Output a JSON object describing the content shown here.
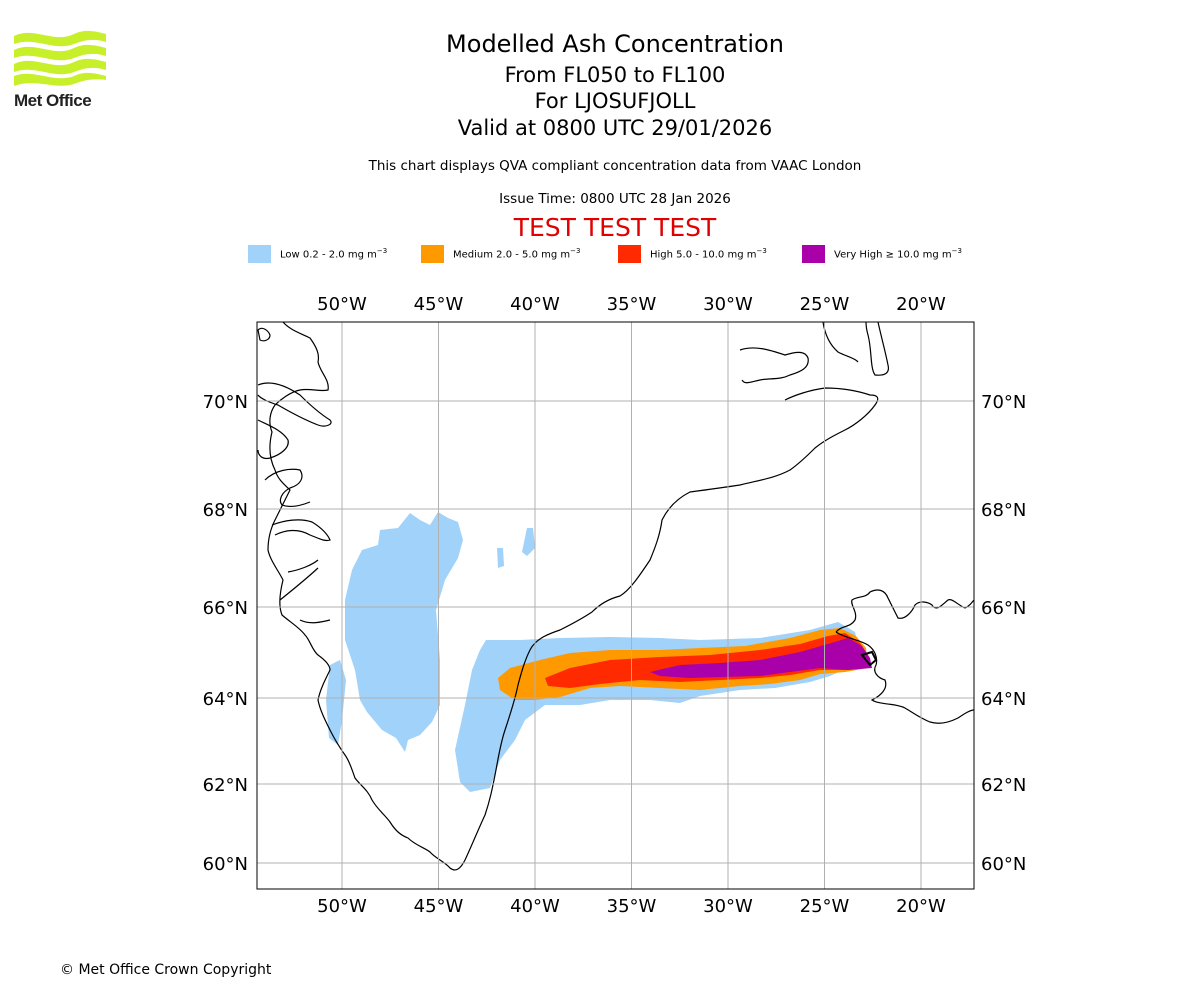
{
  "logo": {
    "brand": "Met Office",
    "icon": "met-office-wave-logo",
    "color": "#c8f02a"
  },
  "titles": {
    "main": "Modelled Ash Concentration",
    "levels": "From FL050 to FL100",
    "volcano": "For LJOSUFJOLL",
    "valid": "Valid at 0800 UTC 29/01/2026"
  },
  "subtitle": "This chart displays QVA compliant concentration data from VAAC London",
  "issue_time": "Issue Time: 0800 UTC 28 Jan 2026",
  "test_banner": "TEST TEST TEST",
  "legend": [
    {
      "label": "Low 0.2 - 2.0 mg m",
      "unit_exp": "−3",
      "color": "#a0d2fa"
    },
    {
      "label": "Medium 2.0 - 5.0 mg m",
      "unit_exp": "−3",
      "color": "#ff9900"
    },
    {
      "label": "High 5.0 - 10.0 mg m",
      "unit_exp": "−3",
      "color": "#ff2a00"
    },
    {
      "label": "Very High  ≥  10.0 mg m",
      "unit_exp": "−3",
      "color": "#aa00aa"
    }
  ],
  "footer": {
    "copyright": "© Met Office Crown Copyright"
  },
  "chart_data": {
    "type": "heatmap",
    "title": "Modelled Ash Concentration",
    "projection": "lat-lon map",
    "lon_range": [
      -54.5,
      -17.5
    ],
    "lat_range": [
      59.5,
      71.5
    ],
    "lon_ticks": [
      -50,
      -45,
      -40,
      -35,
      -30,
      -25,
      -20
    ],
    "lon_tick_labels": [
      "50°W",
      "45°W",
      "40°W",
      "35°W",
      "30°W",
      "25°W",
      "20°W"
    ],
    "lat_ticks": [
      60,
      62,
      64,
      66,
      68,
      70
    ],
    "lat_tick_labels": [
      "60°N",
      "62°N",
      "64°N",
      "66°N",
      "68°N",
      "70°N"
    ],
    "grid": true,
    "legend_position": "top-center",
    "source_location": {
      "name": "LJOSUFJOLL",
      "lon": -22.5,
      "lat": 64.9
    },
    "plume_regions": [
      {
        "level": "Low",
        "range": "0.2 - 2.0",
        "extent_lon": [
          -49.5,
          -22.5
        ],
        "extent_lat": [
          62.0,
          68.0
        ]
      },
      {
        "level": "Medium",
        "range": "2.0 - 5.0",
        "extent_lon": [
          -42,
          -23
        ],
        "extent_lat": [
          63.9,
          65.5
        ]
      },
      {
        "level": "High",
        "range": "5.0 - 10.0",
        "extent_lon": [
          -40,
          -22.8
        ],
        "extent_lat": [
          64.1,
          65.4
        ]
      },
      {
        "level": "Very High",
        "range": ">= 10.0",
        "extent_lon": [
          -34,
          -22.8
        ],
        "extent_lat": [
          64.5,
          65.3
        ]
      }
    ]
  }
}
